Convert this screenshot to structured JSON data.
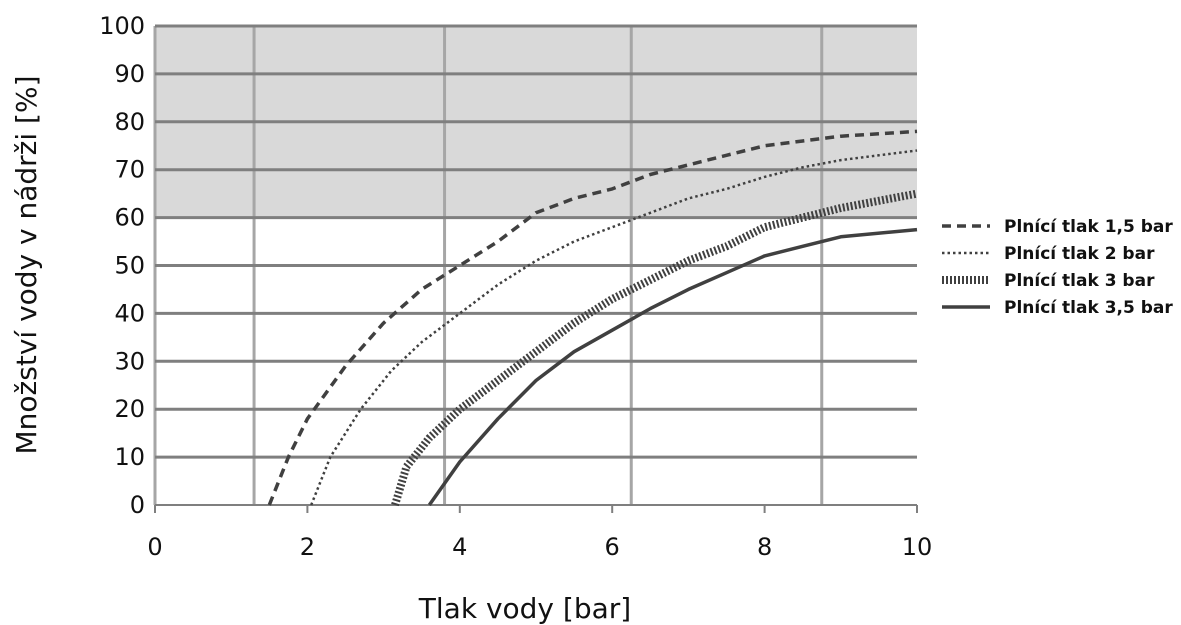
{
  "chart_data": {
    "type": "line",
    "title": "",
    "xlabel": "Tlak vody [bar]",
    "ylabel": "Množství vody v nádrži [%]",
    "xlim": [
      0,
      10
    ],
    "ylim": [
      0,
      100
    ],
    "x_ticks": [
      0,
      2,
      4,
      6,
      8,
      10
    ],
    "y_ticks": [
      0,
      10,
      20,
      30,
      40,
      50,
      60,
      70,
      80,
      90,
      100
    ],
    "x_gridlines": [
      0,
      1.3,
      3.8,
      6.25,
      8.75
    ],
    "grid": true,
    "shaded_region": {
      "y_from": 60,
      "y_to": 100,
      "color": "#d9d9d9"
    },
    "legend_position": "right",
    "colors": {
      "line": "#404040",
      "grid": "#a6a6a6",
      "hgrid": "#7f7f7f",
      "shade": "#d9d9d9"
    },
    "series": [
      {
        "name": "Plnící tlak 1,5 bar",
        "style": "dashed",
        "points": [
          [
            1.5,
            0
          ],
          [
            1.75,
            10
          ],
          [
            2,
            18
          ],
          [
            2.5,
            29
          ],
          [
            3,
            38
          ],
          [
            3.5,
            45
          ],
          [
            4,
            50
          ],
          [
            4.5,
            55
          ],
          [
            5,
            61
          ],
          [
            5.5,
            64
          ],
          [
            6,
            66
          ],
          [
            6.5,
            69
          ],
          [
            7,
            71
          ],
          [
            7.5,
            73
          ],
          [
            8,
            75
          ],
          [
            8.5,
            76
          ],
          [
            9,
            77
          ],
          [
            10,
            78
          ]
        ]
      },
      {
        "name": "Plnící tlak 2 bar",
        "style": "dotted",
        "points": [
          [
            2.05,
            0
          ],
          [
            2.3,
            10
          ],
          [
            2.7,
            20
          ],
          [
            3.1,
            28
          ],
          [
            3.5,
            34
          ],
          [
            4,
            40
          ],
          [
            4.5,
            46
          ],
          [
            5,
            51
          ],
          [
            5.5,
            55
          ],
          [
            6,
            58
          ],
          [
            6.5,
            61
          ],
          [
            7,
            64
          ],
          [
            7.5,
            66
          ],
          [
            8,
            68.5
          ],
          [
            8.5,
            70.5
          ],
          [
            9,
            72
          ],
          [
            9.5,
            73
          ],
          [
            10,
            74
          ]
        ]
      },
      {
        "name": "Plnící tlak 3 bar",
        "style": "hatched",
        "points": [
          [
            3.15,
            0
          ],
          [
            3.3,
            8
          ],
          [
            3.6,
            14
          ],
          [
            4,
            20
          ],
          [
            4.5,
            26
          ],
          [
            5,
            32
          ],
          [
            5.5,
            38
          ],
          [
            6,
            43
          ],
          [
            6.5,
            47
          ],
          [
            7,
            51
          ],
          [
            7.5,
            54
          ],
          [
            8,
            58
          ],
          [
            8.5,
            60
          ],
          [
            9,
            62
          ],
          [
            10,
            65
          ]
        ]
      },
      {
        "name": "Plnící tlak 3,5 bar",
        "style": "solid",
        "points": [
          [
            3.6,
            0
          ],
          [
            4,
            9
          ],
          [
            4.5,
            18
          ],
          [
            5,
            26
          ],
          [
            5.5,
            32
          ],
          [
            6,
            36.5
          ],
          [
            6.5,
            41
          ],
          [
            7,
            45
          ],
          [
            7.5,
            48.5
          ],
          [
            8,
            52
          ],
          [
            8.5,
            54
          ],
          [
            9,
            56
          ],
          [
            10,
            57.5
          ]
        ]
      }
    ]
  }
}
